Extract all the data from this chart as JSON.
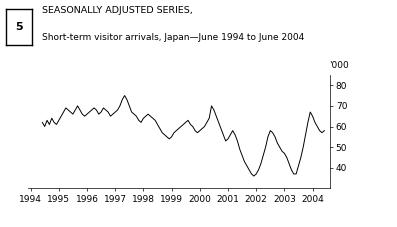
{
  "title_line1": "SEASONALLY ADJUSTED SERIES,",
  "title_line2": "Short-term visitor arrivals, Japan—June 1994 to June 2004",
  "figure_number": "5",
  "ylabel": "'000",
  "ylim": [
    30,
    85
  ],
  "yticks": [
    40,
    50,
    60,
    70,
    80
  ],
  "xticks": [
    1994,
    1995,
    1996,
    1997,
    1998,
    1999,
    2000,
    2001,
    2002,
    2003,
    2004
  ],
  "line_color": "#000000",
  "line_width": 0.7,
  "background_color": "#ffffff",
  "monthly_data": [
    62,
    60,
    63,
    61,
    64,
    62,
    61,
    63,
    65,
    67,
    69,
    68,
    67,
    66,
    68,
    70,
    68,
    66,
    65,
    66,
    67,
    68,
    69,
    68,
    66,
    67,
    69,
    68,
    67,
    65,
    66,
    67,
    68,
    70,
    73,
    75,
    73,
    70,
    67,
    66,
    65,
    63,
    62,
    64,
    65,
    66,
    65,
    64,
    63,
    61,
    59,
    57,
    56,
    55,
    54,
    55,
    57,
    58,
    59,
    60,
    61,
    62,
    63,
    61,
    60,
    58,
    57,
    58,
    59,
    60,
    62,
    64,
    70,
    68,
    65,
    62,
    59,
    56,
    53,
    54,
    56,
    58,
    56,
    53,
    49,
    46,
    43,
    41,
    39,
    37,
    36,
    37,
    39,
    42,
    46,
    50,
    55,
    58,
    57,
    55,
    52,
    50,
    48,
    47,
    45,
    42,
    39,
    37,
    37,
    41,
    45,
    50,
    56,
    62,
    67,
    65,
    62,
    60,
    58,
    57,
    58
  ]
}
